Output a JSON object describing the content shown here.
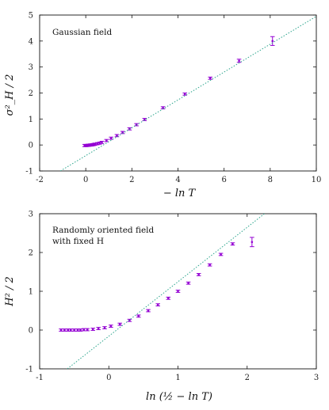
{
  "chart_data": [
    {
      "type": "scatter",
      "title": "",
      "annotation_lines": [
        "Gaussian field"
      ],
      "xlabel": "− ln T",
      "ylabel": "σ²_H / 2",
      "xlim": [
        -2,
        10
      ],
      "ylim": [
        -1,
        5
      ],
      "xticks": [
        "-2",
        "0",
        "2",
        "4",
        "6",
        "8",
        "10"
      ],
      "yticks": [
        "-1",
        "0",
        "1",
        "2",
        "3",
        "4",
        "5"
      ],
      "grid": false,
      "series": [
        {
          "kind": "points",
          "color": "#9400d3",
          "x": [
            -0.05,
            0.0,
            0.05,
            0.1,
            0.15,
            0.2,
            0.25,
            0.3,
            0.35,
            0.4,
            0.5,
            0.6,
            0.7,
            0.9,
            1.1,
            1.35,
            1.6,
            1.9,
            2.2,
            2.55,
            3.35,
            4.3,
            5.4,
            6.65,
            8.1
          ],
          "y": [
            -0.02,
            -0.02,
            -0.02,
            -0.01,
            -0.01,
            0.0,
            0.0,
            0.01,
            0.02,
            0.03,
            0.05,
            0.07,
            0.1,
            0.17,
            0.26,
            0.36,
            0.48,
            0.62,
            0.78,
            0.98,
            1.43,
            1.96,
            2.57,
            3.24,
            4.0
          ],
          "err": [
            0,
            0,
            0,
            0,
            0,
            0,
            0,
            0,
            0,
            0,
            0,
            0,
            0,
            0,
            0,
            0,
            0,
            0,
            0,
            0,
            0,
            0,
            0.03,
            0.06,
            0.17
          ]
        },
        {
          "kind": "line",
          "color": "#2ca58d",
          "style": "dotted",
          "x": [
            -1.1,
            10.0
          ],
          "y": [
            -1.0,
            4.95
          ]
        }
      ]
    },
    {
      "type": "scatter",
      "title": "",
      "annotation_lines": [
        "Randomly oriented field",
        "with fixed H"
      ],
      "xlabel": "ln (½ − ln T)",
      "ylabel": "H² / 2",
      "xlim": [
        -1,
        3
      ],
      "ylim": [
        -1,
        3
      ],
      "xticks": [
        "-1",
        "0",
        "1",
        "2",
        "3"
      ],
      "yticks": [
        "-1",
        "0",
        "1",
        "2",
        "3"
      ],
      "grid": false,
      "series": [
        {
          "kind": "points",
          "color": "#9400d3",
          "x": [
            -0.69,
            -0.64,
            -0.59,
            -0.55,
            -0.5,
            -0.45,
            -0.41,
            -0.36,
            -0.31,
            -0.23,
            -0.15,
            -0.06,
            0.03,
            0.16,
            0.3,
            0.43,
            0.57,
            0.71,
            0.86,
            1.0,
            1.15,
            1.3,
            1.46,
            1.62,
            1.79,
            2.07
          ],
          "y": [
            0.0,
            0.0,
            0.0,
            0.0,
            0.0,
            0.0,
            0.0,
            0.01,
            0.01,
            0.02,
            0.04,
            0.06,
            0.1,
            0.15,
            0.25,
            0.36,
            0.5,
            0.65,
            0.82,
            1.0,
            1.21,
            1.43,
            1.68,
            1.95,
            2.22,
            2.27
          ],
          "err": [
            0,
            0,
            0,
            0,
            0,
            0,
            0,
            0,
            0,
            0,
            0,
            0,
            0,
            0,
            0,
            0,
            0,
            0,
            0,
            0,
            0,
            0,
            0,
            0,
            0.03,
            0.12
          ]
        },
        {
          "kind": "line",
          "color": "#2ca58d",
          "style": "dotted",
          "x": [
            -0.6,
            2.25
          ],
          "y": [
            -1.0,
            3.0
          ]
        }
      ]
    }
  ]
}
